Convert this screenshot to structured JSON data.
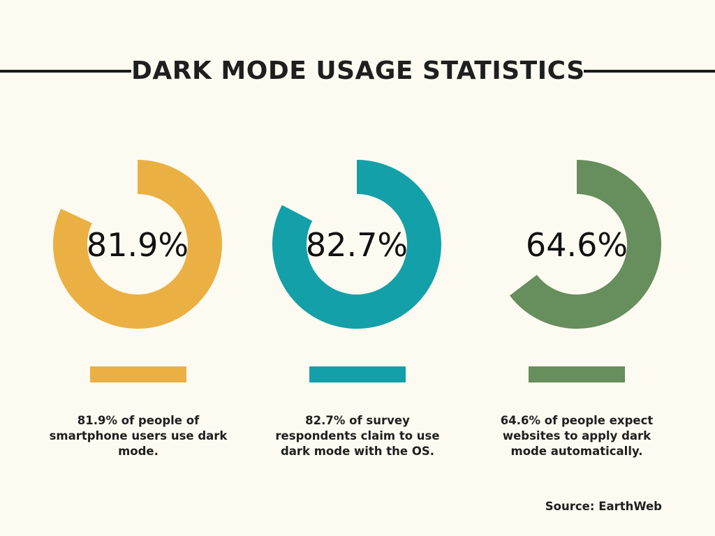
{
  "title": "DARK MODE USAGE STATISTICS",
  "source": "Source: EarthWeb",
  "chart_data": {
    "type": "pie",
    "title": "DARK MODE USAGE STATISTICS",
    "items": [
      {
        "value": 81.9,
        "label": "81.9%",
        "description": "81.9% of people of smartphone users use dark mode.",
        "color": "#ebb043"
      },
      {
        "value": 82.7,
        "label": "82.7%",
        "description": "82.7% of survey respondents claim to use dark mode with the OS.",
        "color": "#14a0a8"
      },
      {
        "value": 64.6,
        "label": "64.6%",
        "description": "64.6% of people expect websites to apply dark mode automatically.",
        "color": "#678e5d"
      }
    ]
  }
}
